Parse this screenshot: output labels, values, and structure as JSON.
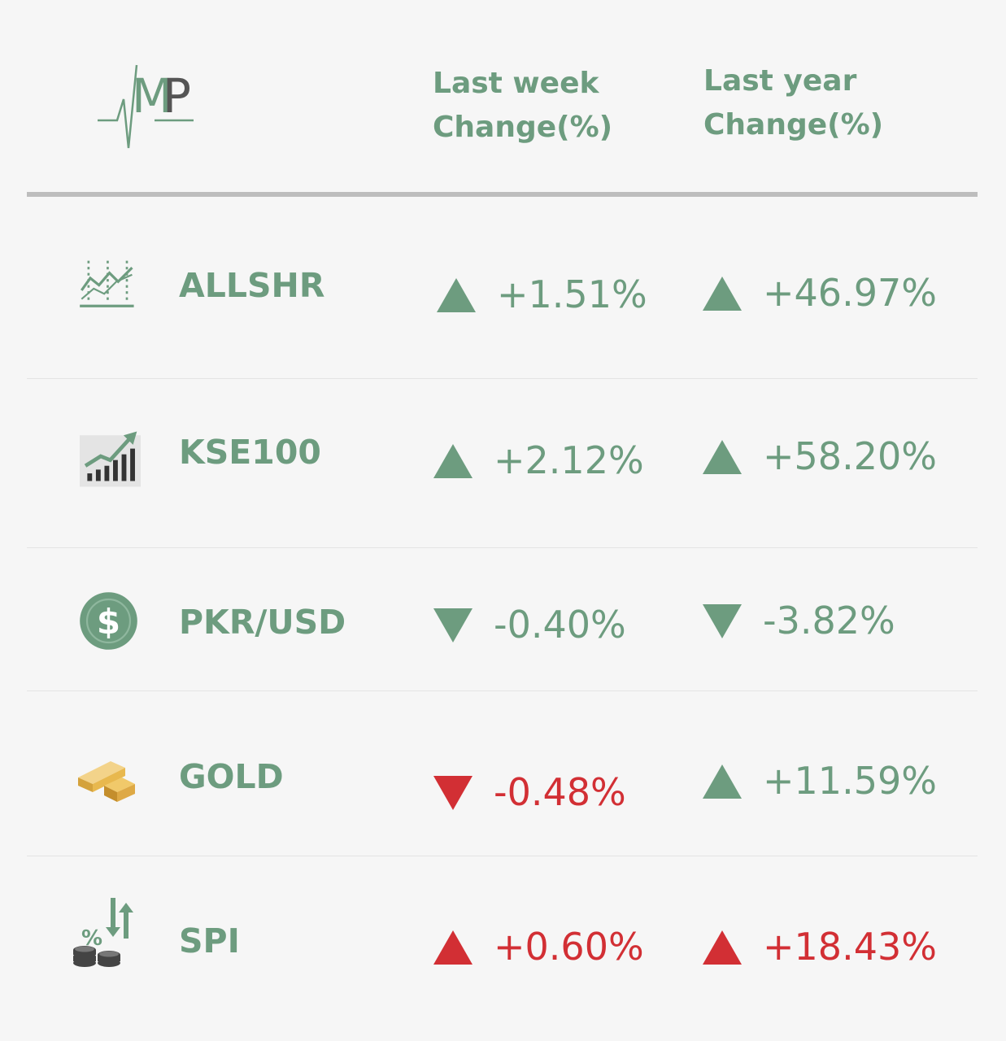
{
  "header": {
    "logo_text": "MP",
    "week_line1": "Last week",
    "week_line2": "Change(%)",
    "year_line1": "Last year",
    "year_line2": "Change(%)"
  },
  "colors": {
    "green": "#6d9c7f",
    "red": "#d22f34",
    "divider": "#bdbdbd"
  },
  "rows": [
    {
      "name": "ALLSHR",
      "icon": "line-chart-icon",
      "week": "+1.51%",
      "week_dir": "up",
      "week_color": "green",
      "year": "+46.97%",
      "year_dir": "up",
      "year_color": "green"
    },
    {
      "name": "KSE100",
      "icon": "bar-chart-up-icon",
      "week": "+2.12%",
      "week_dir": "up",
      "week_color": "green",
      "year": "+58.20%",
      "year_dir": "up",
      "year_color": "green"
    },
    {
      "name": "PKR/USD",
      "icon": "dollar-coin-icon",
      "week": "-0.40%",
      "week_dir": "down",
      "week_color": "green",
      "year": "-3.82%",
      "year_dir": "down",
      "year_color": "green"
    },
    {
      "name": "GOLD",
      "icon": "gold-bar-icon",
      "week": "-0.48%",
      "week_dir": "down",
      "week_color": "red",
      "year": "+11.59%",
      "year_dir": "up",
      "year_color": "green"
    },
    {
      "name": "SPI",
      "icon": "percent-coins-icon",
      "week": "+0.60%",
      "week_dir": "up",
      "week_color": "red",
      "year": "+18.43%",
      "year_dir": "up",
      "year_color": "red"
    }
  ]
}
